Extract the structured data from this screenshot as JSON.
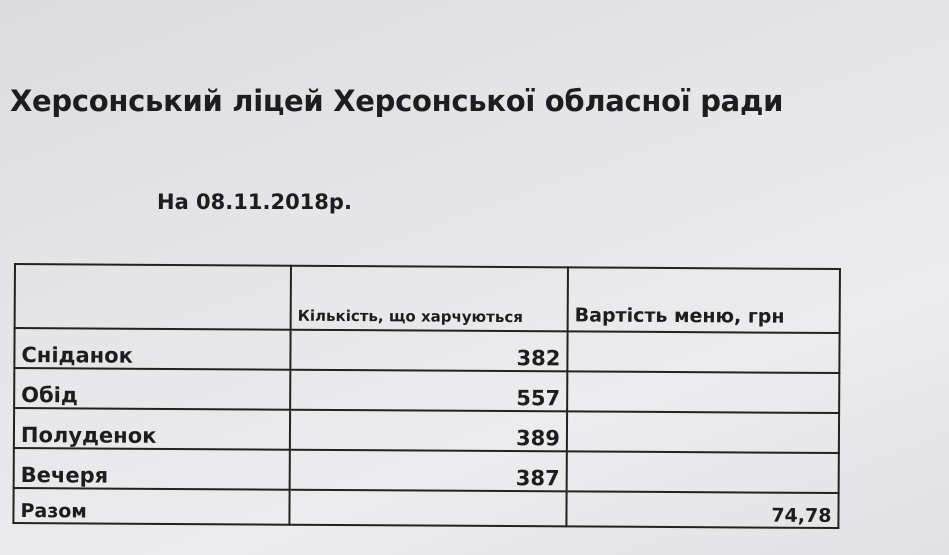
{
  "document": {
    "title": "Херсонський ліцей Херсонської обласної ради",
    "date_line": "На 08.11.2018р.",
    "table": {
      "headers": [
        "",
        "Кількість, що харчуються",
        "Вартість меню, грн"
      ],
      "rows": [
        {
          "meal": "Сніданок",
          "count": "382",
          "cost": ""
        },
        {
          "meal": "Обід",
          "count": "557",
          "cost": ""
        },
        {
          "meal": "Полуденок",
          "count": "389",
          "cost": ""
        },
        {
          "meal": "Вечеря",
          "count": "387",
          "cost": ""
        }
      ],
      "total": {
        "label": "Разом",
        "count": "",
        "cost": "74,78"
      }
    }
  }
}
